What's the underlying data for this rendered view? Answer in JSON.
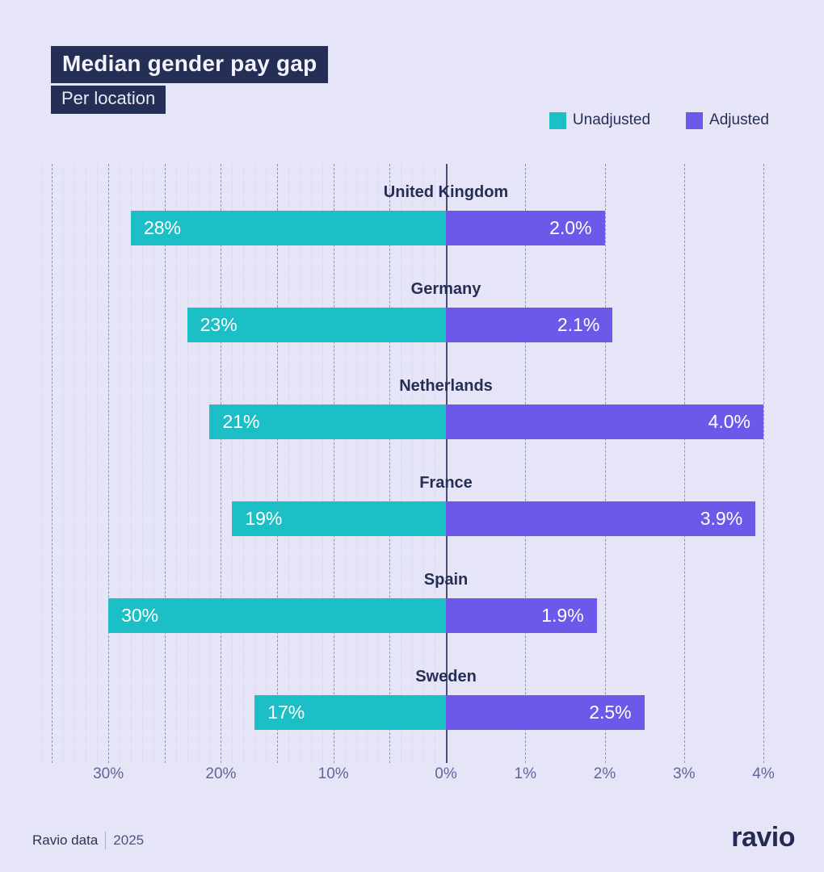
{
  "header": {
    "title": "Median gender pay gap",
    "subtitle": "Per location"
  },
  "colors": {
    "background": "#e6e5f7",
    "title_box": "#252e54",
    "unadjusted": "#1dbfc6",
    "adjusted": "#6d59e9",
    "country_label": "#252e54",
    "tick_label": "#60659a",
    "grid_major": "#8f93b6",
    "grid_minor": "#d7d7ee",
    "zero_line": "#474d74"
  },
  "chart_data": {
    "type": "bar",
    "orientation": "diverging-horizontal",
    "title": "Median gender pay gap",
    "subtitle": "Per location",
    "categories": [
      "United Kingdom",
      "Germany",
      "Netherlands",
      "France",
      "Spain",
      "Sweden"
    ],
    "series": [
      {
        "name": "Unadjusted",
        "side": "left",
        "color": "#1dbfc6",
        "values": [
          28,
          23,
          21,
          19,
          30,
          17
        ],
        "labels": [
          "28%",
          "23%",
          "21%",
          "19%",
          "30%",
          "17%"
        ]
      },
      {
        "name": "Adjusted",
        "side": "right",
        "color": "#6d59e9",
        "values": [
          2.0,
          2.1,
          4.0,
          3.9,
          1.9,
          2.5
        ],
        "labels": [
          "2.0%",
          "2.1%",
          "4.0%",
          "3.9%",
          "1.9%",
          "2.5%"
        ]
      }
    ],
    "x_axis": {
      "zero_label": "0%",
      "left_ticks": [
        {
          "label": "30%",
          "value": 30
        },
        {
          "label": "20%",
          "value": 20
        },
        {
          "label": "10%",
          "value": 10
        }
      ],
      "right_ticks": [
        {
          "label": "1%",
          "value": 1
        },
        {
          "label": "2%",
          "value": 2
        },
        {
          "label": "3%",
          "value": 3
        },
        {
          "label": "4%",
          "value": 4
        }
      ],
      "left_range_max": 36,
      "left_major_step": 5,
      "right_range_max": 4,
      "grid": true,
      "legend_position": "top-right"
    }
  },
  "footer": {
    "source": "Ravio data",
    "year": "2025",
    "logo": "ravio"
  }
}
